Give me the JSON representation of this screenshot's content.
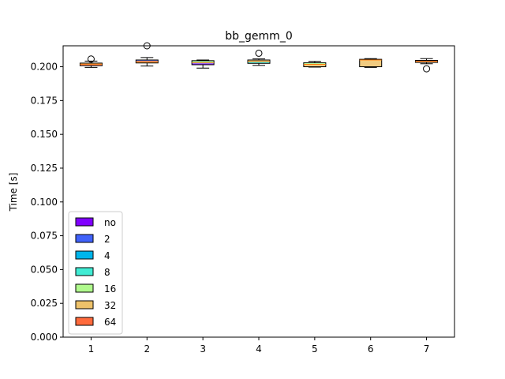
{
  "chart_data": {
    "type": "box",
    "title": "bb_gemm_0",
    "xlabel": "",
    "ylabel": "Time [s]",
    "ylim": [
      0,
      0.2155
    ],
    "yticks": [
      "0.000",
      "0.025",
      "0.050",
      "0.075",
      "0.100",
      "0.125",
      "0.150",
      "0.175",
      "0.200"
    ],
    "ytick_values": [
      0,
      0.025,
      0.05,
      0.075,
      0.1,
      0.125,
      0.15,
      0.175,
      0.2
    ],
    "categories": [
      "1",
      "2",
      "3",
      "4",
      "5",
      "6",
      "7"
    ],
    "grid": false,
    "legend_position": "lower-left",
    "series": [
      {
        "name": "no",
        "color": "#8000ff"
      },
      {
        "name": "2",
        "color": "#4062fa"
      },
      {
        "name": "4",
        "color": "#00b5eb"
      },
      {
        "name": "8",
        "color": "#40ecd4"
      },
      {
        "name": "16",
        "color": "#b0fa8d"
      },
      {
        "name": "32",
        "color": "#eec26a"
      },
      {
        "name": "64",
        "color": "#ff6a3c"
      }
    ],
    "boxes": [
      {
        "category": "1",
        "whislo": 0.1995,
        "q1": 0.2008,
        "med": 0.2019,
        "q3": 0.2027,
        "whishi": 0.2042,
        "fliers": [
          0.2057
        ],
        "colors": [
          "#eec26a",
          "#ff6a3c"
        ]
      },
      {
        "category": "2",
        "whislo": 0.2005,
        "q1": 0.2028,
        "med": 0.2036,
        "q3": 0.205,
        "whishi": 0.2068,
        "fliers": [
          0.2155
        ],
        "colors": [
          "#4062fa",
          "#ff6a3c",
          "#eec26a"
        ]
      },
      {
        "category": "3",
        "whislo": 0.199,
        "q1": 0.2015,
        "med": 0.203,
        "q3": 0.2045,
        "whishi": 0.205,
        "fliers": [],
        "colors": [
          "#b0fa8d",
          "#40ecd4",
          "#8000ff"
        ]
      },
      {
        "category": "4",
        "whislo": 0.201,
        "q1": 0.2025,
        "med": 0.204,
        "q3": 0.205,
        "whishi": 0.2058,
        "fliers": [
          0.21
        ],
        "colors": [
          "#eec26a",
          "#40ecd4"
        ]
      },
      {
        "category": "5",
        "whislo": 0.1997,
        "q1": 0.2,
        "med": 0.2018,
        "q3": 0.203,
        "whishi": 0.204,
        "fliers": [],
        "colors": [
          "#b0fa8d",
          "#eec26a"
        ]
      },
      {
        "category": "6",
        "whislo": 0.1995,
        "q1": 0.2,
        "med": 0.205,
        "q3": 0.2055,
        "whishi": 0.206,
        "fliers": [],
        "colors": [
          "#eec26a"
        ]
      },
      {
        "category": "7",
        "whislo": 0.2022,
        "q1": 0.2032,
        "med": 0.204,
        "q3": 0.2047,
        "whishi": 0.206,
        "fliers": [
          0.1985
        ],
        "colors": [
          "#ff6a3c",
          "#eec26a"
        ]
      }
    ]
  }
}
